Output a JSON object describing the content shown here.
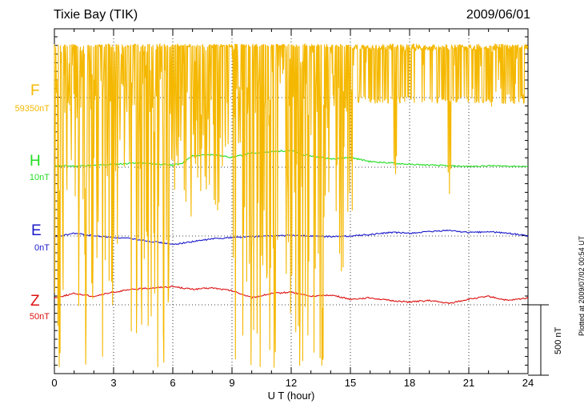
{
  "header": {
    "station": "Tixie Bay (TIK)",
    "date": "2009/06/01"
  },
  "plotted_note": "Plotted at 2009/07/02 00:54 UT",
  "scale_label": "500 nT",
  "colors": {
    "F": "#f5b800",
    "H": "#22dd22",
    "E": "#1a1acc",
    "Z": "#dd1111",
    "grid": "#000000"
  },
  "components": [
    {
      "letter": "F",
      "baseline": "59350nT",
      "color": "#f5b800"
    },
    {
      "letter": "H",
      "baseline": "10nT",
      "color": "#22dd22"
    },
    {
      "letter": "E",
      "baseline": "0nT",
      "color": "#1a1acc"
    },
    {
      "letter": "Z",
      "baseline": "50nT",
      "color": "#dd1111"
    }
  ],
  "chart_data": {
    "type": "line",
    "xlabel": "U T (hour)",
    "xlim": [
      0,
      24
    ],
    "xticks": [
      "0",
      "3",
      "6",
      "9",
      "12",
      "15",
      "18",
      "21",
      "24"
    ],
    "grid": true,
    "series": [
      {
        "name": "H",
        "x": [
          0,
          1,
          2,
          3,
          4,
          5,
          6,
          6.5,
          7,
          8,
          9,
          10,
          11,
          12,
          12.5,
          13,
          14,
          15,
          16,
          17,
          18,
          19,
          20,
          21,
          22,
          23,
          24
        ],
        "y": [
          10,
          8,
          12,
          20,
          30,
          25,
          15,
          30,
          80,
          90,
          70,
          100,
          110,
          120,
          90,
          80,
          60,
          70,
          40,
          30,
          20,
          15,
          10,
          5,
          10,
          8,
          5
        ]
      },
      {
        "name": "E",
        "x": [
          0,
          1,
          2,
          3,
          4,
          5,
          6,
          7,
          8,
          9,
          10,
          11,
          12,
          13,
          14,
          15,
          16,
          17,
          18,
          19,
          20,
          21,
          22,
          23,
          24
        ],
        "y": [
          -10,
          20,
          0,
          -10,
          -20,
          -40,
          -60,
          -40,
          -20,
          -10,
          -5,
          0,
          5,
          0,
          -5,
          0,
          10,
          25,
          20,
          30,
          40,
          25,
          30,
          20,
          0
        ]
      },
      {
        "name": "Z",
        "x": [
          0,
          1,
          2,
          3,
          4,
          5,
          6,
          7,
          8,
          9,
          10,
          11,
          12,
          13,
          14,
          15,
          16,
          17,
          18,
          19,
          20,
          21,
          22,
          23,
          24
        ],
        "y": [
          50,
          80,
          60,
          90,
          110,
          120,
          130,
          110,
          120,
          100,
          50,
          80,
          90,
          60,
          70,
          40,
          50,
          30,
          20,
          30,
          10,
          40,
          60,
          30,
          50
        ]
      }
    ]
  }
}
